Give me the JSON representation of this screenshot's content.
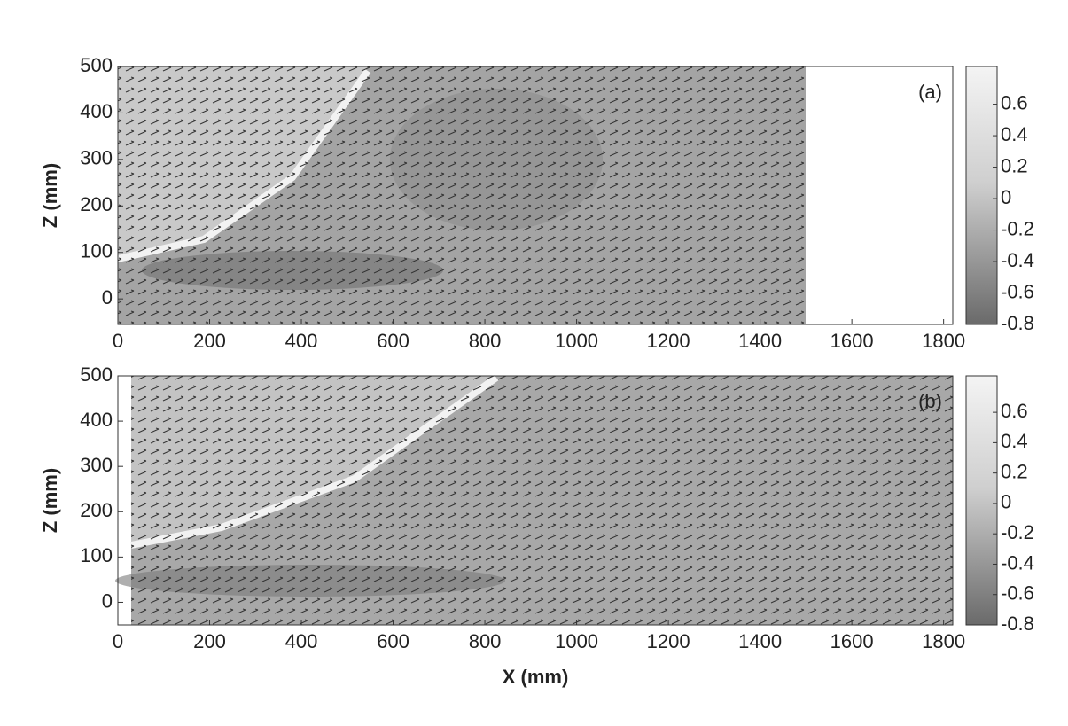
{
  "chart_data": [
    {
      "type": "quiver",
      "panel_label": "(a)",
      "y_label": "Z (mm)",
      "xlim": [
        0,
        1820
      ],
      "xticks": [
        0,
        200,
        400,
        600,
        800,
        1000,
        1200,
        1400,
        1600,
        1800
      ],
      "ylim": [
        -55,
        500
      ],
      "yticks": [
        0,
        100,
        200,
        300,
        400,
        500
      ],
      "colorbar": {
        "lim": [
          -0.8,
          0.84
        ],
        "ticks": [
          0.6,
          0.4,
          0.2,
          0,
          -0.2,
          -0.4,
          -0.6,
          -0.8
        ]
      }
    },
    {
      "type": "quiver",
      "panel_label": "(b)",
      "y_label": "Z (mm)",
      "x_label": "X (mm)",
      "xlim": [
        0,
        1820
      ],
      "xticks": [
        0,
        200,
        400,
        600,
        800,
        1000,
        1200,
        1400,
        1600,
        1800
      ],
      "ylim": [
        -50,
        500
      ],
      "yticks": [
        0,
        100,
        200,
        300,
        400,
        500
      ],
      "colorbar": {
        "lim": [
          -0.8,
          0.84
        ],
        "ticks": [
          0.6,
          0.4,
          0.2,
          0,
          -0.2,
          -0.4,
          -0.6,
          -0.8
        ]
      }
    }
  ]
}
